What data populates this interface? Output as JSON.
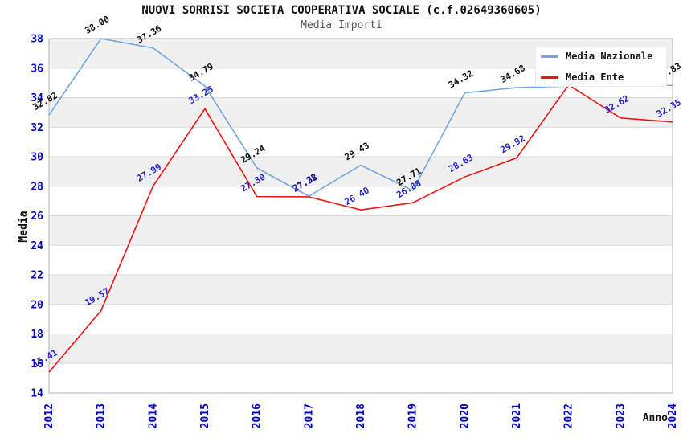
{
  "title": "NUOVI SORRISI SOCIETA COOPERATIVA SOCIALE (c.f.02649360605)",
  "subtitle": "Media Importi",
  "chart_data": {
    "type": "line",
    "title": "NUOVI SORRISI SOCIETA COOPERATIVA SOCIALE (c.f.02649360605)",
    "subtitle": "Media Importi",
    "xlabel": "Anno",
    "ylabel": "Media",
    "ylim": [
      14,
      38
    ],
    "ytick_step": 2,
    "grid": true,
    "legend_position": "top-right",
    "categories": [
      "2012",
      "2013",
      "2014",
      "2015",
      "2016",
      "2017",
      "2018",
      "2019",
      "2020",
      "2021",
      "2022",
      "2023",
      "2024"
    ],
    "series": [
      {
        "name": "Media Nazionale",
        "color": "#74a7dd",
        "label_color": "#111111",
        "values": [
          32.82,
          38.0,
          37.36,
          34.79,
          29.24,
          27.32,
          29.43,
          27.71,
          34.32,
          34.68,
          34.78,
          34.8,
          34.83
        ],
        "labels": [
          "32.82",
          "38.00",
          "37.36",
          "34.79",
          "29.24",
          "27.32",
          "29.43",
          "27.71",
          "34.32",
          "34.68",
          "",
          "",
          "34.83"
        ]
      },
      {
        "name": "Media Ente",
        "color": "#f01414",
        "label_color": "#2323cc",
        "values": [
          15.41,
          19.57,
          27.99,
          33.25,
          27.3,
          27.28,
          26.4,
          26.88,
          28.63,
          29.92,
          34.86,
          32.62,
          32.35
        ],
        "labels": [
          "15.41",
          "19.57",
          "27.99",
          "33.25",
          "27.30",
          "27.28",
          "26.40",
          "26.88",
          "28.63",
          "29.92",
          "",
          "32.62",
          "32.35"
        ]
      }
    ],
    "style": {
      "tick_color": "#0000cc",
      "band_color": "#f0f0f0",
      "grid_color": "#dadada",
      "border_color": "#b3b3b3",
      "background": "#ffffff"
    }
  }
}
